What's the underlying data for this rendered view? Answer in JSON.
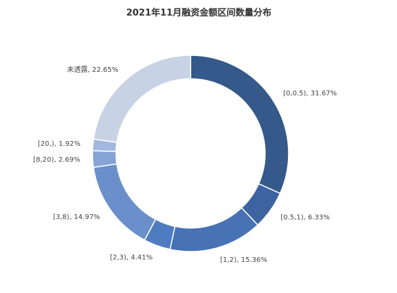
{
  "chart_data": {
    "type": "donut",
    "title": "2021年11月融资金额区间数量分布",
    "values": [
      31.67,
      6.33,
      15.36,
      4.41,
      14.97,
      2.69,
      1.92,
      22.65
    ],
    "value_labels": [
      "[0,0.5), 31.67%",
      "[0.5,1), 6.33%",
      "[1,2), 15.36%",
      "[2,3), 4.41%",
      "[3,8), 14.97%",
      "[8,20), 2.69%",
      "[20,), 1.92%",
      "未透露, 22.65%"
    ],
    "colors": [
      "#34598a",
      "#3d64a0",
      "#4772b4",
      "#4f7cc0",
      "#6a8fcb",
      "#86a3d5",
      "#a3b8df",
      "#c8d2e5"
    ]
  }
}
